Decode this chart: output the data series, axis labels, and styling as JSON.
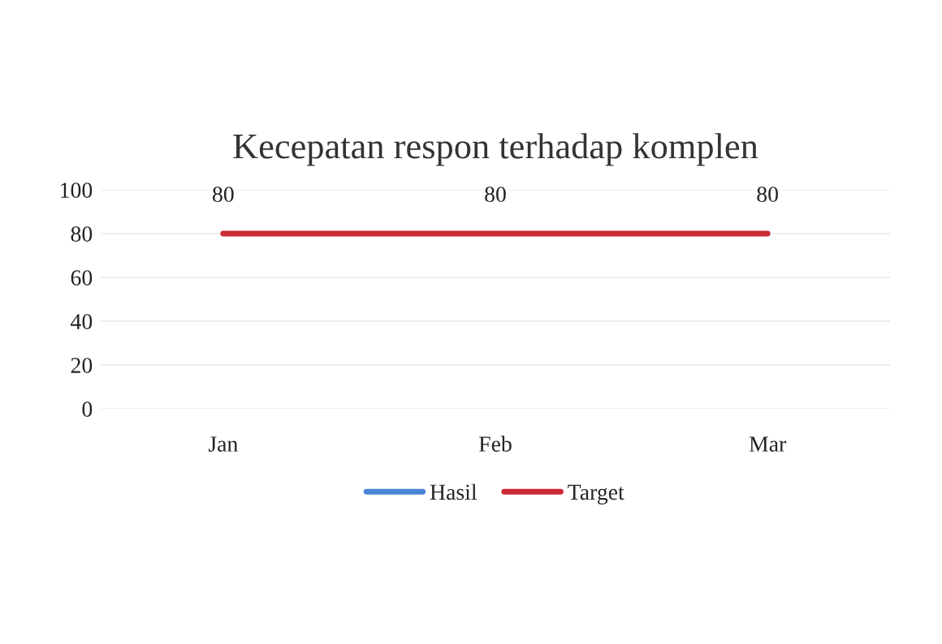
{
  "chart_data": {
    "type": "line",
    "title": "Kecepatan respon terhadap komplen",
    "categories": [
      "Jan",
      "Feb",
      "Mar"
    ],
    "series": [
      {
        "name": "Hasil",
        "color": "#4a86d6",
        "values": [
          null,
          null,
          null
        ]
      },
      {
        "name": "Target",
        "color": "#cc2936",
        "values": [
          80,
          80,
          80
        ]
      }
    ],
    "ylim": [
      0,
      100
    ],
    "yticks": [
      0,
      20,
      40,
      60,
      80,
      100
    ],
    "grid": "y",
    "legend": "bottom",
    "data_labels": true,
    "marker": "none",
    "line_style": "solid"
  }
}
